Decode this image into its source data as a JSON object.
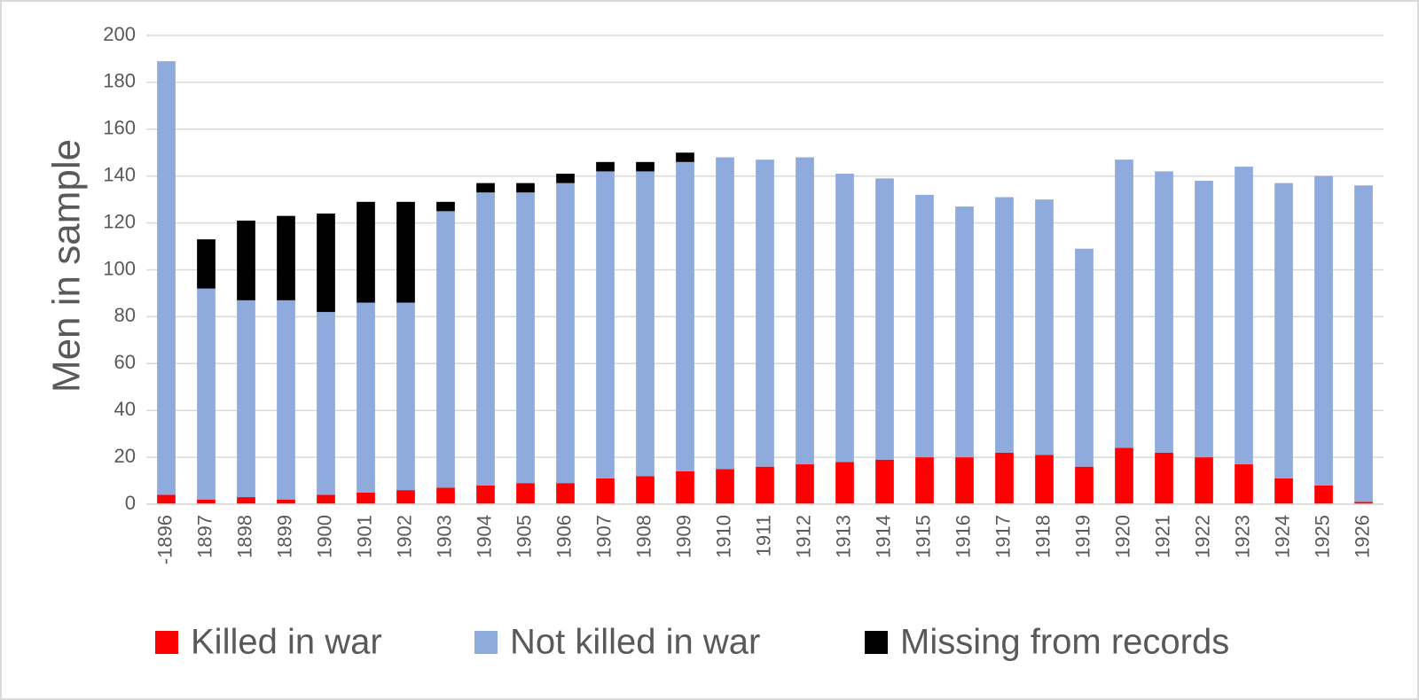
{
  "chart_data": {
    "type": "stacked_bar",
    "y_label": "Men in sample",
    "categories": [
      "-1896",
      "1897",
      "1898",
      "1899",
      "1900",
      "1901",
      "1902",
      "1903",
      "1904",
      "1905",
      "1906",
      "1907",
      "1908",
      "1909",
      "1910",
      "1911",
      "1912",
      "1913",
      "1914",
      "1915",
      "1916",
      "1917",
      "1918",
      "1919",
      "1920",
      "1921",
      "1922",
      "1923",
      "1924",
      "1925",
      "1926"
    ],
    "series": [
      {
        "name": "Killed in war",
        "color": "#ff0000",
        "values": [
          4,
          2,
          3,
          2,
          4,
          5,
          6,
          7,
          8,
          9,
          9,
          11,
          12,
          14,
          15,
          16,
          17,
          18,
          19,
          20,
          20,
          22,
          21,
          16,
          24,
          22,
          20,
          17,
          11,
          8,
          1
        ]
      },
      {
        "name": "Not killed in war",
        "color": "#8faadc",
        "values": [
          185,
          90,
          84,
          85,
          78,
          81,
          80,
          118,
          125,
          124,
          128,
          131,
          130,
          132,
          133,
          131,
          131,
          123,
          120,
          112,
          107,
          109,
          109,
          93,
          123,
          120,
          118,
          127,
          126,
          132,
          135
        ]
      },
      {
        "name": "Missing from records",
        "color": "#000000",
        "values": [
          0,
          21,
          34,
          36,
          42,
          43,
          43,
          4,
          4,
          4,
          4,
          4,
          4,
          4,
          0,
          0,
          0,
          0,
          0,
          0,
          0,
          0,
          0,
          0,
          0,
          0,
          0,
          0,
          0,
          0,
          0
        ]
      }
    ],
    "ylim": [
      0,
      200
    ],
    "yticks": [
      0,
      20,
      40,
      60,
      80,
      100,
      120,
      140,
      160,
      180,
      200
    ],
    "grid": true,
    "legend": "bottom"
  }
}
